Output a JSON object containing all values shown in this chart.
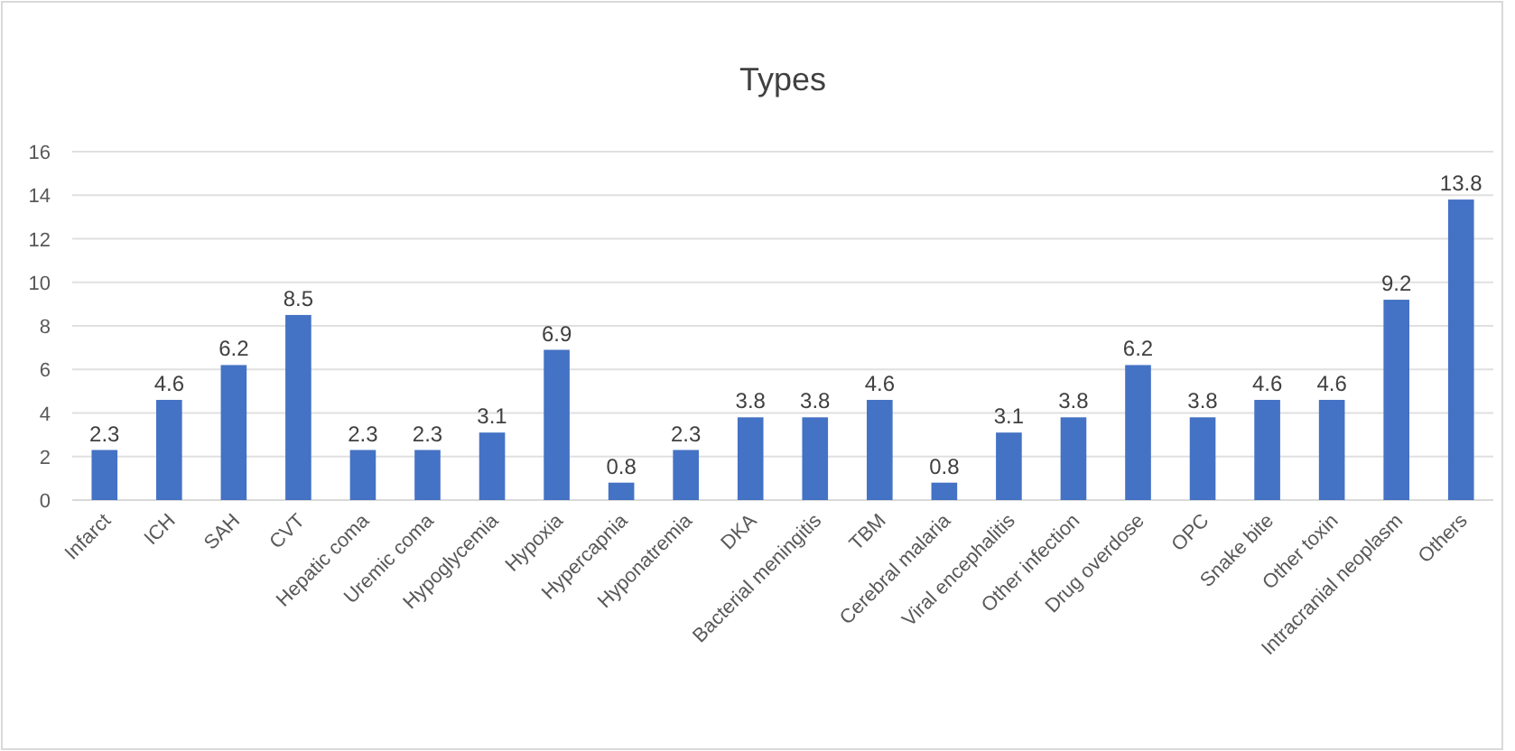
{
  "chart_data": {
    "type": "bar",
    "title": "Types",
    "categories": [
      "Infarct",
      "ICH",
      "SAH",
      "CVT",
      "Hepatic coma",
      "Uremic coma",
      "Hypoglycemia",
      "Hypoxia",
      "Hypercapnia",
      "Hyponatremia",
      "DKA",
      "Bacterial meningitis",
      "TBM",
      "Cerebral malaria",
      "Viral encephalitis",
      "Other infection",
      "Drug overdose",
      "OPC",
      "Snake bite",
      "Other toxin",
      "Intracranial neoplasm",
      "Others"
    ],
    "values": [
      2.3,
      4.6,
      6.2,
      8.5,
      2.3,
      2.3,
      3.1,
      6.9,
      0.8,
      2.3,
      3.8,
      3.8,
      4.6,
      0.8,
      3.1,
      3.8,
      6.2,
      3.8,
      4.6,
      4.6,
      9.2,
      13.8
    ],
    "color": "#4472c4",
    "ylim": [
      0,
      16
    ],
    "yticks": [
      0,
      2,
      4,
      6,
      8,
      10,
      12,
      14,
      16
    ],
    "grid": "y",
    "data_labels": true
  }
}
